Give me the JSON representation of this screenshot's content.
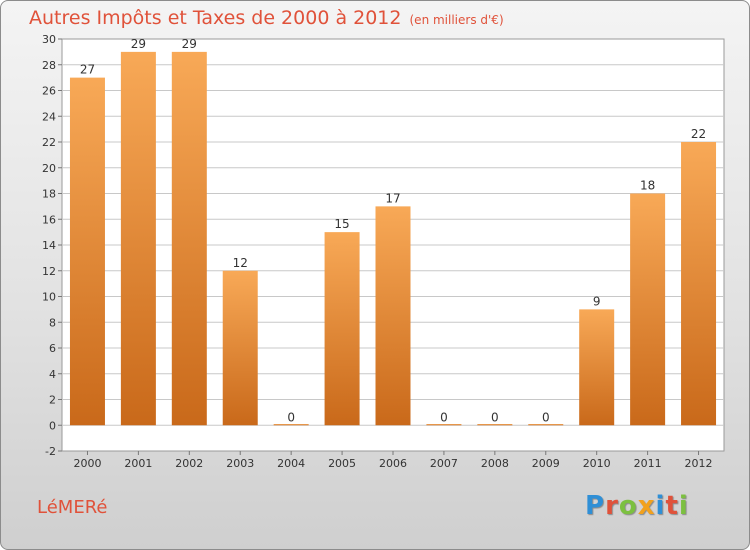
{
  "title": "Autres Impôts et Taxes de 2000 à 2012",
  "unit": "(en milliers d'€)",
  "commune": "LéMERé",
  "logo": {
    "text": "Proxiti",
    "letters": [
      {
        "ch": "P",
        "color": "#2f8fd6"
      },
      {
        "ch": "r",
        "color": "#e0523a"
      },
      {
        "ch": "o",
        "color": "#7cc040"
      },
      {
        "ch": "x",
        "color": "#f2a11d"
      },
      {
        "ch": "i",
        "color": "#2f8fd6"
      },
      {
        "ch": "t",
        "color": "#e0523a"
      },
      {
        "ch": "i",
        "color": "#7cc040"
      }
    ]
  },
  "colors": {
    "bar_top": "#f8a957",
    "bar_bottom": "#c9691a",
    "title": "#e0523a",
    "grid": "#c8c8c8"
  },
  "chart_data": {
    "type": "bar",
    "title": "Autres Impôts et Taxes de 2000 à 2012",
    "subtitle": "(en milliers d'€)",
    "categories": [
      "2000",
      "2001",
      "2002",
      "2003",
      "2004",
      "2005",
      "2006",
      "2007",
      "2008",
      "2009",
      "2010",
      "2011",
      "2012"
    ],
    "values": [
      27,
      29,
      29,
      12,
      0,
      15,
      17,
      0,
      0,
      0,
      9,
      18,
      22
    ],
    "ylim": [
      -2,
      30
    ],
    "yticks": [
      -2,
      0,
      2,
      4,
      6,
      8,
      10,
      12,
      14,
      16,
      18,
      20,
      22,
      24,
      26,
      28,
      30
    ],
    "grid": true,
    "data_labels": true
  }
}
